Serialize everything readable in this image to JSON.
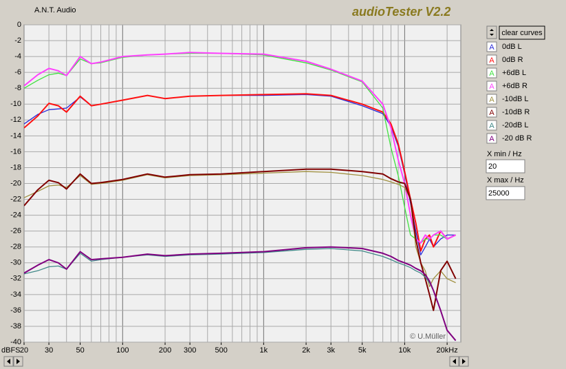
{
  "app_name": "A.N.T. Audio",
  "controls": {
    "clear_button": "clear curves",
    "xmin_label": "X min / Hz",
    "xmax_label": "X max / Hz",
    "legend_icon": "A",
    "copyright": "© U.Müller"
  },
  "chart_data": {
    "type": "line",
    "title": "audioTester V2.2",
    "ylabel": "dBFS",
    "log_x": true,
    "grid": true,
    "xlim": [
      20,
      25000
    ],
    "ylim": [
      -40,
      0
    ],
    "xticks": [
      20,
      30,
      50,
      100,
      200,
      300,
      500,
      {
        "value": 1000,
        "label": "1k"
      },
      {
        "value": 2000,
        "label": "2k"
      },
      {
        "value": 3000,
        "label": "3k"
      },
      {
        "value": 5000,
        "label": "5k"
      },
      {
        "value": 10000,
        "label": "10k"
      },
      {
        "value": 20000,
        "label": "20kHz"
      }
    ],
    "yticks": [
      0,
      -2,
      -4,
      -6,
      -8,
      -10,
      -12,
      -14,
      -16,
      -18,
      -20,
      -22,
      -24,
      -26,
      -28,
      -30,
      -32,
      -34,
      -36,
      -38,
      -40
    ],
    "x": [
      20,
      25,
      30,
      35,
      40,
      50,
      60,
      70,
      100,
      150,
      200,
      300,
      500,
      1000,
      2000,
      3000,
      5000,
      7000,
      8000,
      9000,
      10000,
      11000,
      12000,
      13000,
      14000,
      15000,
      16000,
      18000,
      20000,
      23000
    ],
    "series": [
      {
        "name": "0dB L",
        "color": "#2828d8",
        "values": [
          -12.5,
          -11.3,
          -10.7,
          -10.6,
          -10.5,
          -9.1,
          -10.2,
          -10.0,
          -9.5,
          -8.9,
          -9.3,
          -9.0,
          -8.9,
          -8.9,
          -8.8,
          -9.0,
          -10.2,
          -11.2,
          -12.8,
          -15.3,
          -18.8,
          -22.5,
          -26.0,
          -29.0,
          -28.0,
          -27.0,
          -28.0,
          -27.0,
          -26.5,
          -26.5
        ]
      },
      {
        "name": "0dB R",
        "color": "#ff1010",
        "values": [
          -13.0,
          -11.5,
          -9.9,
          -10.2,
          -11.0,
          -9.0,
          -10.2,
          -10.0,
          -9.5,
          -8.9,
          -9.3,
          -9.0,
          -8.9,
          -8.8,
          -8.7,
          -8.9,
          -10.0,
          -11.0,
          -12.5,
          -15.0,
          -18.5,
          -22.0,
          -25.0,
          -28.5,
          -27.0,
          -26.5,
          -28.0,
          -26.0,
          -27.0,
          -26.5
        ]
      },
      {
        "name": "+6dB L",
        "color": "#40e040",
        "values": [
          -8.0,
          -7.0,
          -6.3,
          -6.1,
          -6.4,
          -4.3,
          -4.9,
          -4.8,
          -4.1,
          -3.8,
          -3.7,
          -3.6,
          -3.6,
          -3.8,
          -4.8,
          -5.7,
          -7.2,
          -10.5,
          -15.5,
          -19.0,
          -23.0,
          -26.5,
          -27.0,
          -27.5,
          -27.0,
          -27.0,
          -26.5,
          -26.5,
          -27.0,
          -26.5
        ]
      },
      {
        "name": "+6dB R",
        "color": "#ff40ff",
        "values": [
          -7.7,
          -6.3,
          -5.5,
          -5.8,
          -6.4,
          -4.0,
          -4.9,
          -4.7,
          -4.0,
          -3.8,
          -3.7,
          -3.5,
          -3.6,
          -3.7,
          -4.6,
          -5.6,
          -7.1,
          -10.0,
          -13.0,
          -17.0,
          -20.0,
          -24.0,
          -27.0,
          -27.5,
          -26.5,
          -27.0,
          -26.5,
          -26.0,
          -27.0,
          -26.5
        ]
      },
      {
        "name": "-10dB L",
        "color": "#a09040",
        "values": [
          -21.8,
          -21.0,
          -20.3,
          -20.2,
          -20.5,
          -19.0,
          -20.1,
          -20.0,
          -19.6,
          -18.9,
          -19.3,
          -19.0,
          -18.9,
          -18.7,
          -18.5,
          -18.6,
          -19.0,
          -19.5,
          -19.8,
          -20.1,
          -20.5,
          -22.0,
          -28.0,
          -30.0,
          -31.0,
          -33.0,
          -32.0,
          -31.0,
          -32.0,
          -32.5
        ]
      },
      {
        "name": "-10dB R",
        "color": "#800000",
        "values": [
          -22.8,
          -20.8,
          -19.6,
          -19.9,
          -20.7,
          -18.8,
          -20.0,
          -19.9,
          -19.5,
          -18.8,
          -19.2,
          -18.9,
          -18.8,
          -18.5,
          -18.2,
          -18.2,
          -18.5,
          -18.8,
          -19.4,
          -19.8,
          -20.0,
          -22.0,
          -27.0,
          -30.0,
          -32.0,
          -34.0,
          -36.0,
          -31.0,
          -29.8,
          -32.0
        ]
      },
      {
        "name": "-20dB L",
        "color": "#408888",
        "values": [
          -31.4,
          -31.0,
          -30.5,
          -30.4,
          -30.8,
          -28.8,
          -29.8,
          -29.6,
          -29.3,
          -29.0,
          -29.2,
          -29.0,
          -28.9,
          -28.7,
          -28.3,
          -28.2,
          -28.5,
          -29.2,
          -29.6,
          -30.0,
          -30.3,
          -30.6,
          -31.0,
          -31.3,
          -31.8,
          -32.5,
          -33.5,
          -36.0,
          -38.5,
          -39.8
        ]
      },
      {
        "name": "-20 dB R",
        "color": "#800080",
        "values": [
          -31.3,
          -30.3,
          -29.6,
          -30.0,
          -30.8,
          -28.6,
          -29.6,
          -29.5,
          -29.3,
          -28.9,
          -29.1,
          -28.9,
          -28.8,
          -28.6,
          -28.1,
          -28.0,
          -28.2,
          -28.8,
          -29.2,
          -29.7,
          -30.0,
          -30.3,
          -30.7,
          -31.0,
          -31.5,
          -32.3,
          -33.5,
          -36.0,
          -38.5,
          -39.8
        ]
      }
    ]
  }
}
